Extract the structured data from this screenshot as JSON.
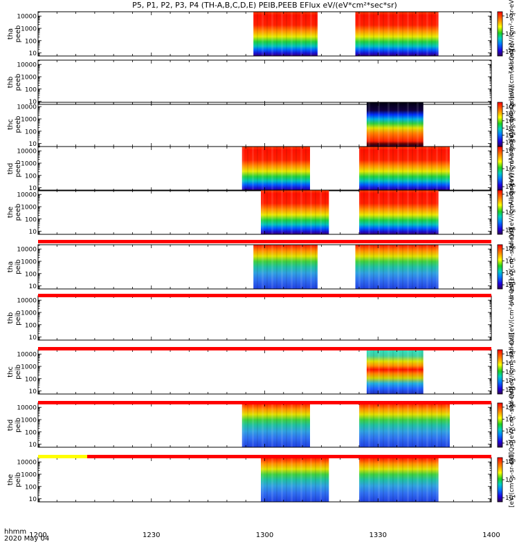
{
  "title": "P5, P1, P2, P3, P4 (TH-A,B,C,D,E) PEIB,PEEB EFlux eV/(eV*cm²*sec*sr)",
  "footer": {
    "hhmm": "hhmm",
    "date": "2020 May 04"
  },
  "chart_data": {
    "type": "heatmap",
    "x_axis": {
      "range": [
        "12:00",
        "14:00"
      ],
      "tick_labels": [
        "1200",
        "1230",
        "1300",
        "1330",
        "1400"
      ]
    },
    "y_tick_labels": [
      "10",
      "100",
      "1000",
      "10000"
    ],
    "y_scale": "log",
    "panels": [
      {
        "id": "tha-peeb",
        "label": [
          "tha",
          "peeb"
        ],
        "cbar_ticks": [
          "10⁵",
          "10⁶",
          "10⁷"
        ],
        "cbar_label": "(All Qs)[eV/(cm²-s-sr-eV)]",
        "segments": [
          {
            "start": "12:57",
            "end": "13:14",
            "kind": "electron"
          },
          {
            "start": "13:24",
            "end": "13:46",
            "kind": "electron"
          }
        ]
      },
      {
        "id": "thb-peeb",
        "label": [
          "thb",
          "peeb"
        ],
        "cbar_ticks": [],
        "cbar_label": "(All Qs)[eV/(cm²-s-sr-eV)]",
        "segments": []
      },
      {
        "id": "thc-peeb",
        "label": [
          "thc",
          "peeb"
        ],
        "cbar_ticks": [
          "10³",
          "10⁴",
          "10⁵",
          "10⁶",
          "10⁷",
          "10⁸"
        ],
        "cbar_label": "(All Qs)[eV/(cm²-s-sr-eV)]",
        "segments": [
          {
            "start": "13:27",
            "end": "13:42",
            "kind": "thc"
          }
        ]
      },
      {
        "id": "thd-peeb",
        "label": [
          "thd",
          "peeb"
        ],
        "cbar_ticks": [
          "10⁵",
          "10⁶",
          "10⁷"
        ],
        "cbar_label": "(All Qs)[eV/(cm²-s-sr-eV)]",
        "segments": [
          {
            "start": "12:54",
            "end": "13:12",
            "kind": "electron"
          },
          {
            "start": "13:25",
            "end": "13:49",
            "kind": "electron"
          }
        ]
      },
      {
        "id": "the-peeb",
        "label": [
          "the",
          "peeb"
        ],
        "cbar_ticks": [
          "10⁵",
          "10⁶",
          "10⁷"
        ],
        "cbar_label": "(All Qs)[eV/(cm²-s-sr-eV)]",
        "segments": [
          {
            "start": "12:59",
            "end": "13:17",
            "kind": "electron"
          },
          {
            "start": "13:25",
            "end": "13:46",
            "kind": "electron"
          }
        ]
      },
      {
        "id": "tha-peib",
        "label": [
          "tha",
          "peib"
        ],
        "cbar_ticks": [
          "10³",
          "10⁴",
          "10⁵",
          "10⁶"
        ],
        "cbar_label": "(All Qs)[eV/(cm²-s-sr-eV)]",
        "segments": [
          {
            "start": "12:57",
            "end": "13:14",
            "kind": "ion"
          },
          {
            "start": "13:24",
            "end": "13:46",
            "kind": "ion"
          }
        ]
      },
      {
        "id": "thb-peib",
        "label": [
          "thb",
          "peib"
        ],
        "cbar_ticks": [],
        "cbar_label": "(All Qs)[eV/(cm²-s-sr-eV)]",
        "segments": []
      },
      {
        "id": "thc-peib",
        "label": [
          "thc",
          "peib"
        ],
        "cbar_ticks": [
          "10³",
          "10⁴",
          "10⁵",
          "10⁶",
          "10⁷"
        ],
        "cbar_label": "(All Qs)[eV/(cm²-s-sr-eV)]",
        "segments": [
          {
            "start": "13:27",
            "end": "13:42",
            "kind": "thcion"
          }
        ]
      },
      {
        "id": "thd-peib",
        "label": [
          "thd",
          "peib"
        ],
        "cbar_ticks": [
          "10³",
          "10⁴",
          "10⁵",
          "10⁶"
        ],
        "cbar_label": "(All Qs)[eV/(cm²-s-sr-eV)]",
        "segments": [
          {
            "start": "12:54",
            "end": "13:12",
            "kind": "ion"
          },
          {
            "start": "13:25",
            "end": "13:49",
            "kind": "ion"
          }
        ]
      },
      {
        "id": "the-peib",
        "label": [
          "the",
          "peib"
        ],
        "cbar_ticks": [
          "10⁴",
          "10⁵",
          "10⁶"
        ],
        "cbar_label": "[eV/(cm²-s-sr-eV)]",
        "segments": [
          {
            "start": "12:59",
            "end": "13:17",
            "kind": "ion"
          },
          {
            "start": "13:25",
            "end": "13:46",
            "kind": "ion"
          }
        ]
      }
    ],
    "mode_bars": [
      {
        "after_panel": 4,
        "segments": [
          {
            "start": "12:00",
            "end": "14:00",
            "color": "#ff0000"
          }
        ]
      },
      {
        "after_panel": 5,
        "segments": [
          {
            "start": "12:00",
            "end": "14:00",
            "color": "#ff0000"
          }
        ]
      },
      {
        "after_panel": 6,
        "segments": [
          {
            "start": "12:00",
            "end": "14:00",
            "color": "#ff0000"
          }
        ]
      },
      {
        "after_panel": 7,
        "segments": [
          {
            "start": "12:00",
            "end": "14:00",
            "color": "#ff0000"
          }
        ]
      },
      {
        "after_panel": 8,
        "segments": [
          {
            "start": "12:00",
            "end": "12:13",
            "color": "#ffff00"
          },
          {
            "start": "12:13",
            "end": "14:00",
            "color": "#ff0000"
          }
        ]
      }
    ]
  }
}
